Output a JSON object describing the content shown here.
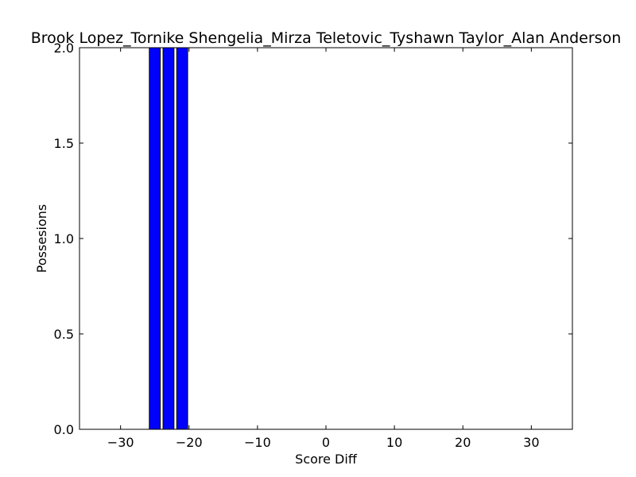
{
  "chart_data": {
    "type": "bar",
    "title": "Brook Lopez_Tornike Shengelia_Mirza Teletovic_Tyshawn Taylor_Alan Anderson",
    "xlabel": "Score Diff",
    "ylabel": "Possesions",
    "xlim": [
      -36,
      36
    ],
    "ylim": [
      0,
      2.0
    ],
    "xticks": [
      -30,
      -20,
      -10,
      0,
      10,
      20,
      30
    ],
    "xtick_labels": [
      "−30",
      "−20",
      "−10",
      "0",
      "10",
      "20",
      "30"
    ],
    "yticks": [
      0,
      0.5,
      1.0,
      1.5,
      2.0
    ],
    "ytick_labels": [
      "0.0",
      "0.5",
      "1.0",
      "1.5",
      "2.0"
    ],
    "bar_color": "#0000ff",
    "bars": [
      {
        "x": -25,
        "value": 2
      },
      {
        "x": -23,
        "value": 2
      },
      {
        "x": -21,
        "value": 2
      }
    ],
    "grid": false
  }
}
